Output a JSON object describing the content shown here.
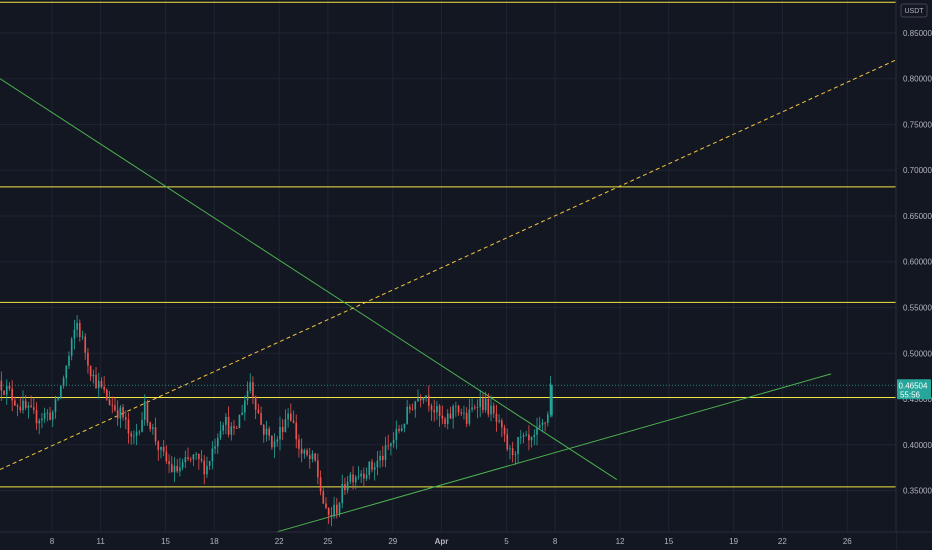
{
  "chart_data": {
    "type": "candlestick",
    "currency": "USDT",
    "y_ticks": [
      "0.85000",
      "0.80000",
      "0.75000",
      "0.70000",
      "0.65000",
      "0.60000",
      "0.55000",
      "0.50000",
      "0.45000",
      "0.40000",
      "0.35000"
    ],
    "ylim": [
      0.3047,
      0.886
    ],
    "x_ticks": [
      {
        "label": "8",
        "day": 8
      },
      {
        "label": "11",
        "day": 11
      },
      {
        "label": "15",
        "day": 15
      },
      {
        "label": "18",
        "day": 18
      },
      {
        "label": "22",
        "day": 22
      },
      {
        "label": "25",
        "day": 25
      },
      {
        "label": "29",
        "day": 29
      },
      {
        "label": "Apr",
        "day": 32,
        "bold": true
      },
      {
        "label": "5",
        "day": 36
      },
      {
        "label": "8",
        "day": 39
      },
      {
        "label": "12",
        "day": 43
      },
      {
        "label": "15",
        "day": 46
      },
      {
        "label": "19",
        "day": 50
      },
      {
        "label": "22",
        "day": 53
      },
      {
        "label": "26",
        "day": 57
      }
    ],
    "xlim": [
      4.8,
      60.0
    ],
    "current_price": "0.46504",
    "countdown": "55:56",
    "colors": {
      "up": "#26a69a",
      "down": "#ef5350",
      "level": "#f5e642",
      "trend": "#4caf50",
      "badge": "#26a69a"
    },
    "horizontal_levels": [
      0.8835,
      0.6818,
      0.5556,
      0.4516,
      0.354
    ],
    "trend_lines": [
      {
        "style": "solid",
        "color": "green",
        "from": {
          "day": 4.8,
          "price": 0.8
        },
        "to": {
          "day": 42.8,
          "price": 0.362
        }
      },
      {
        "style": "solid",
        "color": "green",
        "from": {
          "day": 21.5,
          "price": 0.303
        },
        "to": {
          "day": 56.0,
          "price": 0.4775
        }
      },
      {
        "style": "dashed",
        "color": "yellow",
        "from": {
          "day": 4.8,
          "price": 0.373
        },
        "to": {
          "day": 60.0,
          "price": 0.8205
        }
      }
    ],
    "anchors": [
      {
        "day": 4.8,
        "price": 0.47
      },
      {
        "day": 6.0,
        "price": 0.445
      },
      {
        "day": 7.0,
        "price": 0.43
      },
      {
        "day": 8.2,
        "price": 0.435
      },
      {
        "day": 9.2,
        "price": 0.5
      },
      {
        "day": 9.6,
        "price": 0.535
      },
      {
        "day": 10.6,
        "price": 0.475
      },
      {
        "day": 11.5,
        "price": 0.45
      },
      {
        "day": 12.5,
        "price": 0.43
      },
      {
        "day": 13.0,
        "price": 0.4
      },
      {
        "day": 13.8,
        "price": 0.44
      },
      {
        "day": 14.8,
        "price": 0.39
      },
      {
        "day": 15.6,
        "price": 0.37
      },
      {
        "day": 16.8,
        "price": 0.385
      },
      {
        "day": 17.6,
        "price": 0.375
      },
      {
        "day": 18.6,
        "price": 0.43
      },
      {
        "day": 19.3,
        "price": 0.41
      },
      {
        "day": 20.3,
        "price": 0.47
      },
      {
        "day": 21.0,
        "price": 0.42
      },
      {
        "day": 21.8,
        "price": 0.4
      },
      {
        "day": 22.7,
        "price": 0.44
      },
      {
        "day": 23.4,
        "price": 0.39
      },
      {
        "day": 24.3,
        "price": 0.38
      },
      {
        "day": 25.0,
        "price": 0.32
      },
      {
        "day": 25.6,
        "price": 0.33
      },
      {
        "day": 26.3,
        "price": 0.365
      },
      {
        "day": 27.0,
        "price": 0.37
      },
      {
        "day": 27.8,
        "price": 0.375
      },
      {
        "day": 28.6,
        "price": 0.39
      },
      {
        "day": 29.6,
        "price": 0.42
      },
      {
        "day": 30.3,
        "price": 0.445
      },
      {
        "day": 31.0,
        "price": 0.46
      },
      {
        "day": 31.6,
        "price": 0.44
      },
      {
        "day": 32.3,
        "price": 0.42
      },
      {
        "day": 33.0,
        "price": 0.445
      },
      {
        "day": 33.6,
        "price": 0.425
      },
      {
        "day": 34.3,
        "price": 0.45
      },
      {
        "day": 35.0,
        "price": 0.44
      },
      {
        "day": 35.6,
        "price": 0.42
      },
      {
        "day": 36.3,
        "price": 0.39
      },
      {
        "day": 37.0,
        "price": 0.405
      },
      {
        "day": 37.6,
        "price": 0.4
      },
      {
        "day": 38.3,
        "price": 0.42
      },
      {
        "day": 38.6,
        "price": 0.43
      },
      {
        "day": 38.8,
        "price": 0.465
      }
    ]
  }
}
